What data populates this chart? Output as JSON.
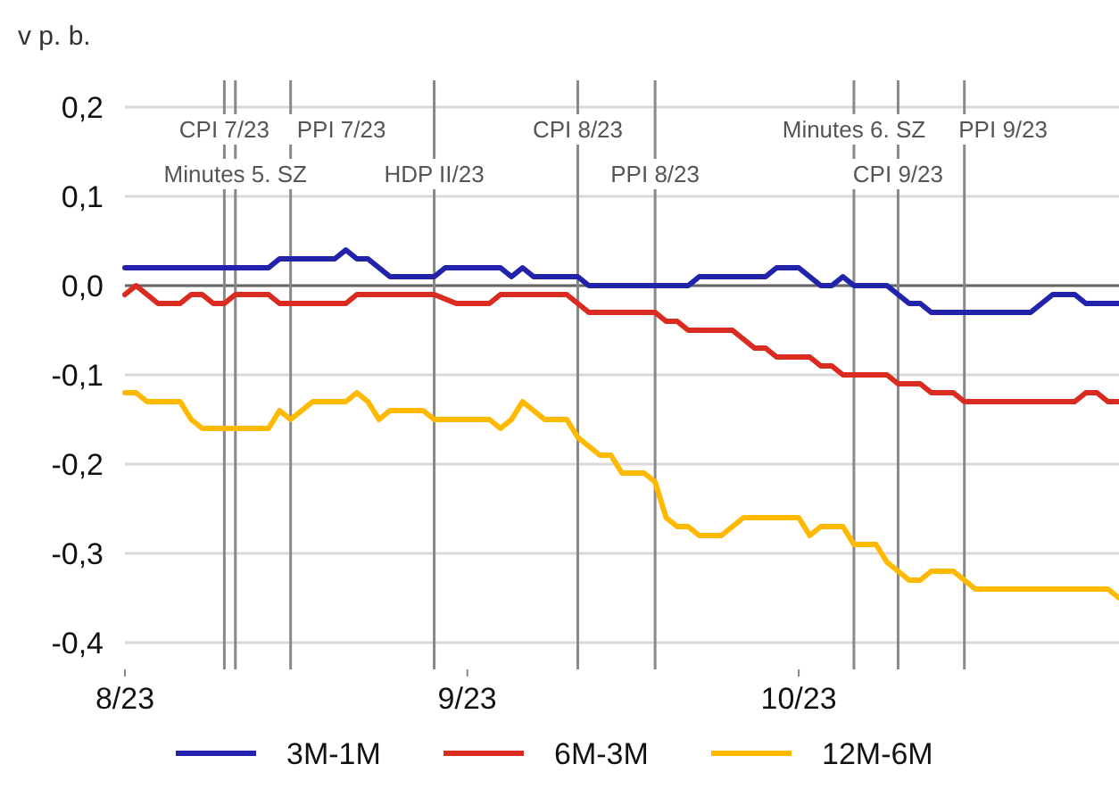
{
  "chart_data": {
    "type": "line",
    "ylabel": "v p. b.",
    "xlim": [
      "2023-08-01",
      "2023-10-30"
    ],
    "xticks": [
      {
        "value": "2023-08-01",
        "label": "8/23"
      },
      {
        "value": "2023-09-01",
        "label": "9/23"
      },
      {
        "value": "2023-10-01",
        "label": "10/23"
      }
    ],
    "ylim": [
      -0.43,
      0.23
    ],
    "yticks": [
      {
        "value": 0.2,
        "label": "0,2"
      },
      {
        "value": 0.1,
        "label": "0,1"
      },
      {
        "value": 0,
        "label": "0,0"
      },
      {
        "value": -0.1,
        "label": "-0,1"
      },
      {
        "value": -0.2,
        "label": "-0,2"
      },
      {
        "value": -0.3,
        "label": "-0,3"
      },
      {
        "value": -0.4,
        "label": "-0,4"
      }
    ],
    "grid": "y",
    "legend": "bottom",
    "series": [
      {
        "name": "3M-1M",
        "color": "#2222aa",
        "x": [
          "2023-08-01",
          "2023-08-14",
          "2023-08-15",
          "2023-08-20",
          "2023-08-21",
          "2023-08-22",
          "2023-08-23",
          "2023-08-25",
          "2023-08-29",
          "2023-08-30",
          "2023-09-04",
          "2023-09-05",
          "2023-09-06",
          "2023-09-07",
          "2023-09-11",
          "2023-09-12",
          "2023-09-21",
          "2023-09-22",
          "2023-09-28",
          "2023-09-29",
          "2023-10-01",
          "2023-10-03",
          "2023-10-04",
          "2023-10-05",
          "2023-10-06",
          "2023-10-09",
          "2023-10-11",
          "2023-10-12",
          "2023-10-13",
          "2023-10-22",
          "2023-10-24",
          "2023-10-26",
          "2023-10-27",
          "2023-10-30"
        ],
        "values": [
          0.02,
          0.02,
          0.03,
          0.03,
          0.04,
          0.03,
          0.03,
          0.01,
          0.01,
          0.02,
          0.02,
          0.01,
          0.02,
          0.01,
          0.01,
          0,
          0,
          0.01,
          0.01,
          0.02,
          0.02,
          0,
          0,
          0.01,
          0,
          0,
          -0.02,
          -0.02,
          -0.03,
          -0.03,
          -0.01,
          -0.01,
          -0.02,
          -0.02
        ]
      },
      {
        "name": "6M-3M",
        "color": "#d92b1f",
        "x": [
          "2023-08-01",
          "2023-08-02",
          "2023-08-04",
          "2023-08-06",
          "2023-08-07",
          "2023-08-08",
          "2023-08-09",
          "2023-08-10",
          "2023-08-11",
          "2023-08-14",
          "2023-08-15",
          "2023-08-21",
          "2023-08-22",
          "2023-08-29",
          "2023-08-31",
          "2023-09-03",
          "2023-09-04",
          "2023-09-10",
          "2023-09-12",
          "2023-09-18",
          "2023-09-19",
          "2023-09-20",
          "2023-09-21",
          "2023-09-25",
          "2023-09-27",
          "2023-09-28",
          "2023-09-29",
          "2023-10-02",
          "2023-10-03",
          "2023-10-04",
          "2023-10-05",
          "2023-10-09",
          "2023-10-10",
          "2023-10-12",
          "2023-10-13",
          "2023-10-15",
          "2023-10-16",
          "2023-10-26",
          "2023-10-27",
          "2023-10-28",
          "2023-10-29",
          "2023-10-30"
        ],
        "values": [
          -0.01,
          0,
          -0.02,
          -0.02,
          -0.01,
          -0.01,
          -0.02,
          -0.02,
          -0.01,
          -0.01,
          -0.02,
          -0.02,
          -0.01,
          -0.01,
          -0.02,
          -0.02,
          -0.01,
          -0.01,
          -0.03,
          -0.03,
          -0.04,
          -0.04,
          -0.05,
          -0.05,
          -0.07,
          -0.07,
          -0.08,
          -0.08,
          -0.09,
          -0.09,
          -0.1,
          -0.1,
          -0.11,
          -0.11,
          -0.12,
          -0.12,
          -0.13,
          -0.13,
          -0.12,
          -0.12,
          -0.13,
          -0.13
        ]
      },
      {
        "name": "12M-6M",
        "color": "#ffb900",
        "x": [
          "2023-08-01",
          "2023-08-02",
          "2023-08-03",
          "2023-08-06",
          "2023-08-07",
          "2023-08-08",
          "2023-08-14",
          "2023-08-15",
          "2023-08-16",
          "2023-08-18",
          "2023-08-21",
          "2023-08-22",
          "2023-08-23",
          "2023-08-24",
          "2023-08-25",
          "2023-08-28",
          "2023-08-29",
          "2023-09-03",
          "2023-09-04",
          "2023-09-05",
          "2023-09-06",
          "2023-09-07",
          "2023-09-08",
          "2023-09-10",
          "2023-09-11",
          "2023-09-13",
          "2023-09-14",
          "2023-09-15",
          "2023-09-17",
          "2023-09-18",
          "2023-09-19",
          "2023-09-20",
          "2023-09-21",
          "2023-09-22",
          "2023-09-24",
          "2023-09-26",
          "2023-10-01",
          "2023-10-02",
          "2023-10-03",
          "2023-10-05",
          "2023-10-06",
          "2023-10-08",
          "2023-10-09",
          "2023-10-11",
          "2023-10-12",
          "2023-10-13",
          "2023-10-15",
          "2023-10-17",
          "2023-10-29",
          "2023-10-30"
        ],
        "values": [
          -0.12,
          -0.12,
          -0.13,
          -0.13,
          -0.15,
          -0.16,
          -0.16,
          -0.14,
          -0.15,
          -0.13,
          -0.13,
          -0.12,
          -0.13,
          -0.15,
          -0.14,
          -0.14,
          -0.15,
          -0.15,
          -0.16,
          -0.15,
          -0.13,
          -0.14,
          -0.15,
          -0.15,
          -0.17,
          -0.19,
          -0.19,
          -0.21,
          -0.21,
          -0.22,
          -0.26,
          -0.27,
          -0.27,
          -0.28,
          -0.28,
          -0.26,
          -0.26,
          -0.28,
          -0.27,
          -0.27,
          -0.29,
          -0.29,
          -0.31,
          -0.33,
          -0.33,
          -0.32,
          -0.32,
          -0.34,
          -0.34,
          -0.35
        ]
      }
    ],
    "ref_lines": [
      {
        "axis": "y",
        "value": 0,
        "color": "#666666"
      },
      {
        "axis": "x",
        "value": "2023-08-10",
        "label": "CPI 7/23",
        "color": "#888888"
      },
      {
        "axis": "x",
        "value": "2023-08-11",
        "label": "Minutes 5. SZ",
        "color": "#888888"
      },
      {
        "axis": "x",
        "value": "2023-08-16",
        "label": "PPI 7/23",
        "color": "#888888"
      },
      {
        "axis": "x",
        "value": "2023-08-29",
        "label": "HDP II/23",
        "color": "#888888"
      },
      {
        "axis": "x",
        "value": "2023-09-11",
        "label": "CPI 8/23",
        "color": "#888888"
      },
      {
        "axis": "x",
        "value": "2023-09-18",
        "label": "PPI 8/23",
        "color": "#888888"
      },
      {
        "axis": "x",
        "value": "2023-10-06",
        "label": "Minutes 6. SZ",
        "color": "#888888"
      },
      {
        "axis": "x",
        "value": "2023-10-10",
        "label": "CPI 9/23",
        "color": "#888888"
      },
      {
        "axis": "x",
        "value": "2023-10-16",
        "label": "PPI 9/23",
        "color": "#888888"
      }
    ]
  }
}
